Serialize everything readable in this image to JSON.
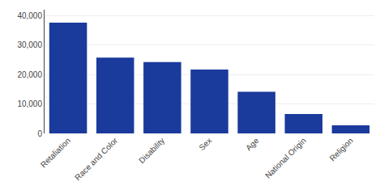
{
  "chart_data": {
    "type": "bar",
    "categories": [
      "Retaliation",
      "Race and Color",
      "Disability",
      "Sex",
      "Age",
      "National Origin",
      "Religion"
    ],
    "values": [
      37632,
      25742,
      24238,
      21654,
      14141,
      6586,
      2725
    ],
    "color": "#1a3a9c",
    "ylim": [
      0,
      42000
    ],
    "yticks": [
      0,
      {
        "value": 10000,
        "label": "10,000"
      },
      {
        "value": 20000,
        "label": "20,000"
      },
      {
        "value": 30000,
        "label": "30,000"
      },
      {
        "value": 40000,
        "label": "40,000"
      }
    ],
    "grid": true
  }
}
